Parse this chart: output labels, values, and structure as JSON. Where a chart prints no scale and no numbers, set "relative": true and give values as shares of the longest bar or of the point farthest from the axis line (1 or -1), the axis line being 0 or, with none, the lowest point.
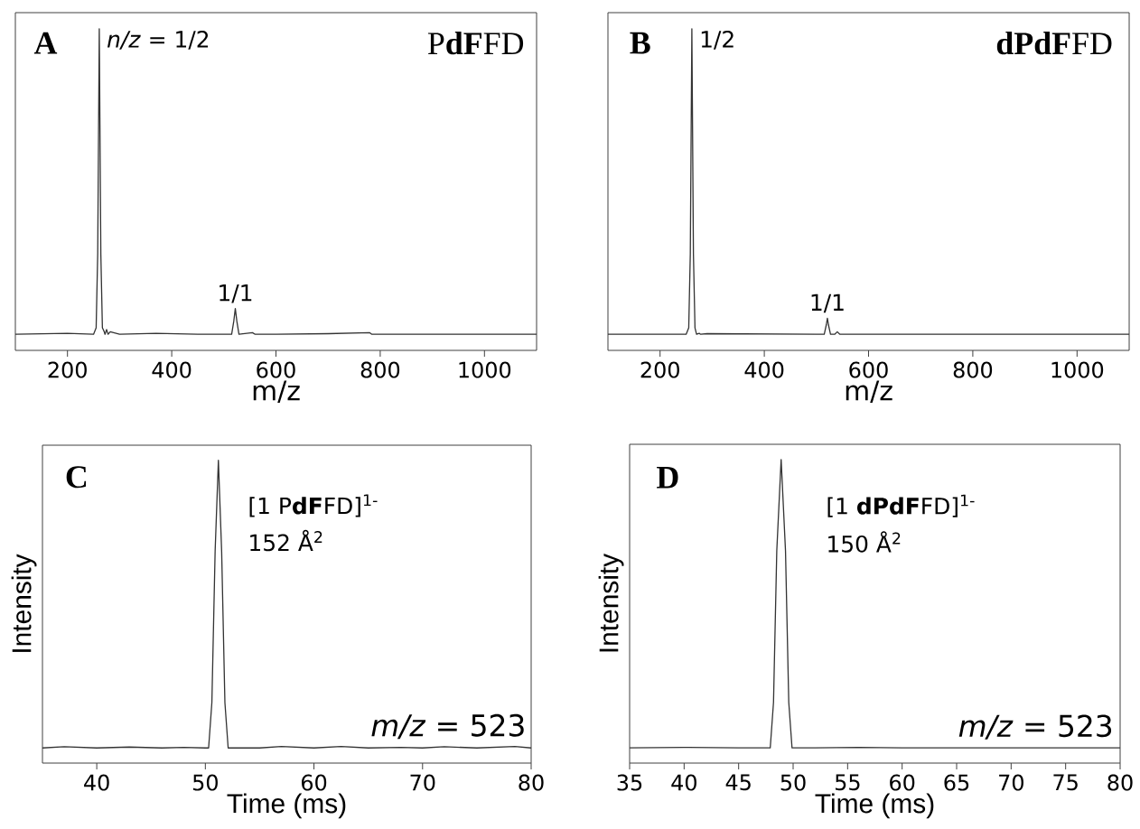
{
  "chart_data": [
    {
      "type": "line",
      "title": "P**dF**FD",
      "xlabel": "m/z",
      "xlim": [
        100,
        1100
      ],
      "xticks": [
        200,
        400,
        600,
        800,
        1000
      ],
      "relative": true,
      "tick_labels": "x",
      "series": [
        {
          "color": "#333333",
          "x": [
            100,
            200,
            250,
            255,
            258,
            261,
            264,
            267,
            270,
            272,
            275,
            278,
            282,
            300,
            370,
            450,
            500,
            515,
            519,
            522,
            525,
            529,
            555,
            560,
            600,
            700,
            780,
            784,
            900,
            1100
          ],
          "values": [
            0.05,
            0.053,
            0.05,
            0.07,
            0.3,
            1,
            0.3,
            0.07,
            0.06,
            0.05,
            0.065,
            0.05,
            0.058,
            0.05,
            0.053,
            0.05,
            0.05,
            0.05,
            0.09,
            0.13,
            0.09,
            0.05,
            0.055,
            0.05,
            0.05,
            0.052,
            0.055,
            0.05,
            0.05,
            0.05
          ]
        }
      ],
      "annotations": [
        "A",
        {
          "text": "*n/z* = 1/2",
          "x": 261,
          "y": 1
        },
        {
          "text": "1/1",
          "x": 522,
          "y": 0.13
        }
      ]
    },
    {
      "type": "line",
      "title": "**dPdF**FD",
      "xlabel": "m/z",
      "xlim": [
        100,
        1100
      ],
      "xticks": [
        200,
        400,
        600,
        800,
        1000
      ],
      "relative": true,
      "tick_labels": "x",
      "series": [
        {
          "color": "#333333",
          "x": [
            100,
            250,
            255,
            258,
            261,
            264,
            267,
            270,
            275,
            278,
            290,
            500,
            515,
            519,
            521,
            523,
            527,
            535,
            540,
            545,
            550,
            1100
          ],
          "values": [
            0.05,
            0.05,
            0.07,
            0.3,
            1,
            0.3,
            0.07,
            0.05,
            0.053,
            0.05,
            0.052,
            0.05,
            0.05,
            0.08,
            0.1,
            0.08,
            0.05,
            0.05,
            0.058,
            0.05,
            0.05,
            0.05
          ]
        }
      ],
      "annotations": [
        "B",
        {
          "text": "1/2",
          "x": 261,
          "y": 1
        },
        {
          "text": "1/1",
          "x": 521,
          "y": 0.1
        }
      ]
    },
    {
      "type": "line",
      "xlabel": "Time (ms)",
      "ylabel": "Intensity",
      "xlim": [
        35,
        80
      ],
      "xticks": [
        40,
        50,
        60,
        70,
        80
      ],
      "relative": true,
      "tick_labels": "x",
      "series": [
        {
          "color": "#333333",
          "x": [
            35,
            37,
            40,
            43,
            46,
            48,
            50,
            50.3,
            50.6,
            50.9,
            51.2,
            51.5,
            51.8,
            52.1,
            55,
            57,
            60,
            62.5,
            65,
            68,
            70,
            72,
            75,
            78.5,
            80
          ],
          "values": [
            0.05,
            0.054,
            0.05,
            0.053,
            0.05,
            0.052,
            0.05,
            0.05,
            0.2,
            0.7,
            1,
            0.7,
            0.2,
            0.05,
            0.05,
            0.055,
            0.05,
            0.055,
            0.05,
            0.052,
            0.05,
            0.054,
            0.05,
            0.055,
            0.05
          ]
        }
      ],
      "annotations": [
        "C",
        "[1 P**dF**FD]$^{1-}$",
        "152 Å$^{2}$",
        "*m/z* = 523"
      ]
    },
    {
      "type": "line",
      "xlabel": "Time (ms)",
      "ylabel": "Intensity",
      "xlim": [
        35,
        80
      ],
      "xticks": [
        35,
        40,
        45,
        50,
        55,
        60,
        65,
        70,
        75,
        80
      ],
      "relative": true,
      "tick_labels": "x",
      "series": [
        {
          "color": "#333333",
          "x": [
            35,
            40,
            45,
            47.9,
            48.2,
            48.5,
            48.9,
            49.3,
            49.6,
            49.9,
            52,
            56,
            60,
            70,
            80
          ],
          "values": [
            0.05,
            0.052,
            0.05,
            0.05,
            0.2,
            0.7,
            1,
            0.7,
            0.2,
            0.05,
            0.05,
            0.052,
            0.05,
            0.05,
            0.05
          ]
        }
      ],
      "annotations": [
        "D",
        "[1 **dPdF**FD]$^{1-}$",
        "150 Å$^{2}$",
        "*m/z* = 523"
      ]
    }
  ]
}
